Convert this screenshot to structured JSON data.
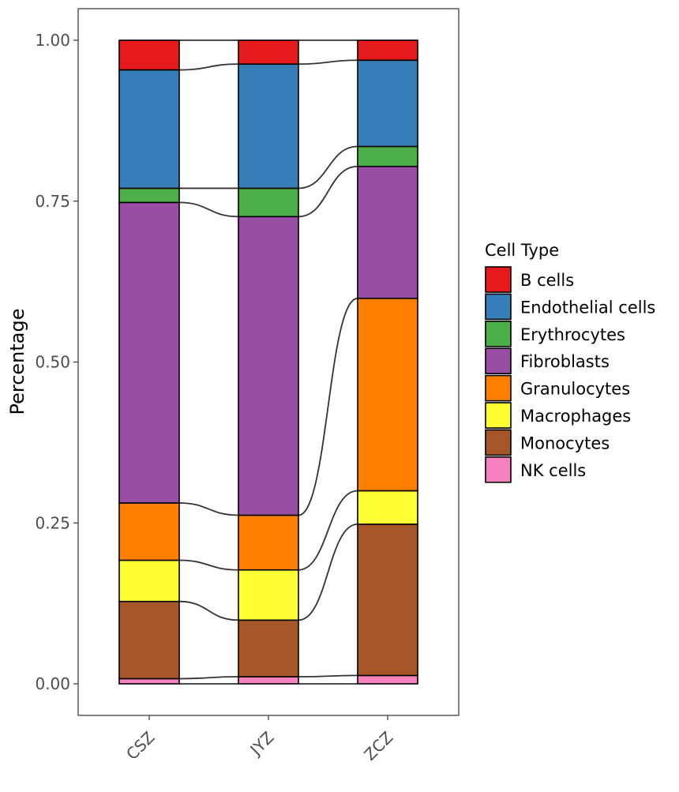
{
  "chart_data": {
    "type": "stacked-bar-alluvial",
    "title": "",
    "xlabel": "",
    "ylabel": "Percentage",
    "ylim": [
      0,
      1
    ],
    "y_ticks": [
      0.0,
      0.25,
      0.5,
      0.75,
      1.0
    ],
    "y_tick_labels": [
      "0.00",
      "0.25",
      "0.50",
      "0.75",
      "1.00"
    ],
    "categories": [
      "CSZ",
      "JYZ",
      "ZCZ"
    ],
    "legend_title": "Cell Type",
    "legend_position": "right",
    "series": [
      {
        "name": "NK cells",
        "color": "#F781BF",
        "values": [
          0.008,
          0.011,
          0.013
        ]
      },
      {
        "name": "Monocytes",
        "color": "#A65628",
        "values": [
          0.12,
          0.088,
          0.235
        ]
      },
      {
        "name": "Macrophages",
        "color": "#FFFF33",
        "values": [
          0.064,
          0.078,
          0.052
        ]
      },
      {
        "name": "Granulocytes",
        "color": "#FF7F00",
        "values": [
          0.089,
          0.085,
          0.299
        ]
      },
      {
        "name": "Fibroblasts",
        "color": "#984EA3",
        "values": [
          0.467,
          0.464,
          0.205
        ]
      },
      {
        "name": "Erythrocytes",
        "color": "#4DAF4A",
        "values": [
          0.022,
          0.044,
          0.031
        ]
      },
      {
        "name": "Endothelial cells",
        "color": "#377EB8",
        "values": [
          0.184,
          0.193,
          0.134
        ]
      },
      {
        "name": "B cells",
        "color": "#E41A1C",
        "values": [
          0.046,
          0.037,
          0.031
        ]
      }
    ],
    "legend_order": [
      "B cells",
      "Endothelial cells",
      "Erythrocytes",
      "Fibroblasts",
      "Granulocytes",
      "Macrophages",
      "Monocytes",
      "NK cells"
    ]
  }
}
